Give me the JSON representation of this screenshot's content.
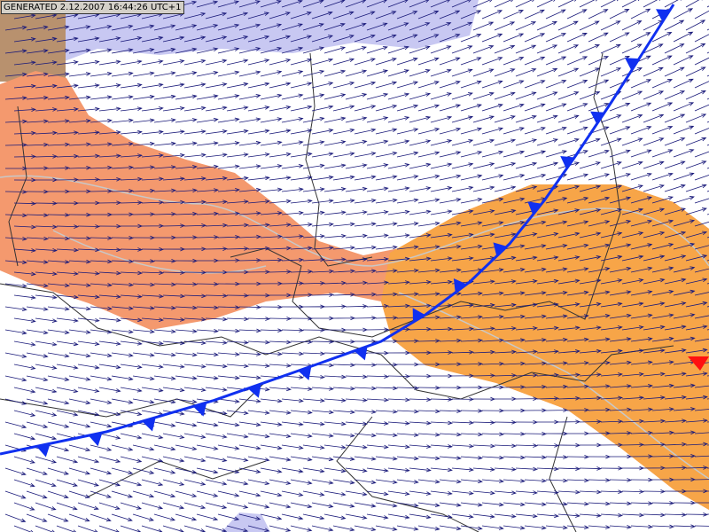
{
  "generated_label": "GENERATED 2.12.2007 16:44:26 UTC+1"
}
